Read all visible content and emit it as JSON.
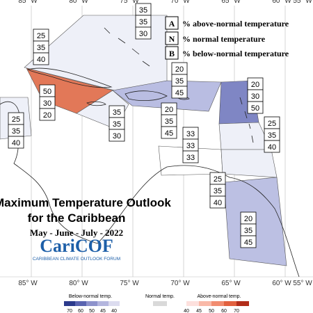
{
  "longitudes_top": [
    "85° W",
    "80° W",
    "75° W",
    "70° W",
    "65° W",
    "60° W",
    "55° W"
  ],
  "longitudes_bottom": [
    "85° W",
    "80° W",
    "75° W",
    "70° W",
    "65° W",
    "60° W",
    "55° W"
  ],
  "legend": [
    {
      "key": "A",
      "text": "% above-normal temperature"
    },
    {
      "key": "N",
      "text": "% normal temperature"
    },
    {
      "key": "B",
      "text": "% below-normal temperature"
    }
  ],
  "title": {
    "main": "Maximum Temperature Outlook",
    "region": "for the Caribbean",
    "season": "May - June - July - 2022",
    "logo": "CariCOF",
    "logo_caption": "CARIBBEAN CLIMATE OUTLOOK FORUM"
  },
  "regions": [
    {
      "above": 25,
      "normal": 35,
      "below": 40
    },
    {
      "above": 35,
      "normal": 35,
      "below": 30
    },
    {
      "above": 50,
      "normal": 30,
      "below": 20
    },
    {
      "above": 25,
      "normal": 35,
      "below": 40
    },
    {
      "above": 35,
      "normal": 35,
      "below": 30
    },
    {
      "above": 20,
      "normal": 35,
      "below": 45
    },
    {
      "above": 20,
      "normal": 30,
      "below": 50
    },
    {
      "above": 20,
      "normal": 35,
      "below": 45
    },
    {
      "above": 25,
      "normal": 35,
      "below": 40
    },
    {
      "above": 33,
      "normal": 33,
      "below": 33
    },
    {
      "above": 25,
      "normal": 35,
      "below": 40
    },
    {
      "above": 20,
      "normal": 35,
      "below": 45
    }
  ],
  "color_scale": {
    "below_label": "Below-normal temp.",
    "normal_label": "Normal temp.",
    "above_label": "Above-normal temp.",
    "below_ticks": [
      70,
      60,
      50,
      45,
      40
    ],
    "above_ticks": [
      40,
      45,
      50,
      60,
      70
    ]
  }
}
